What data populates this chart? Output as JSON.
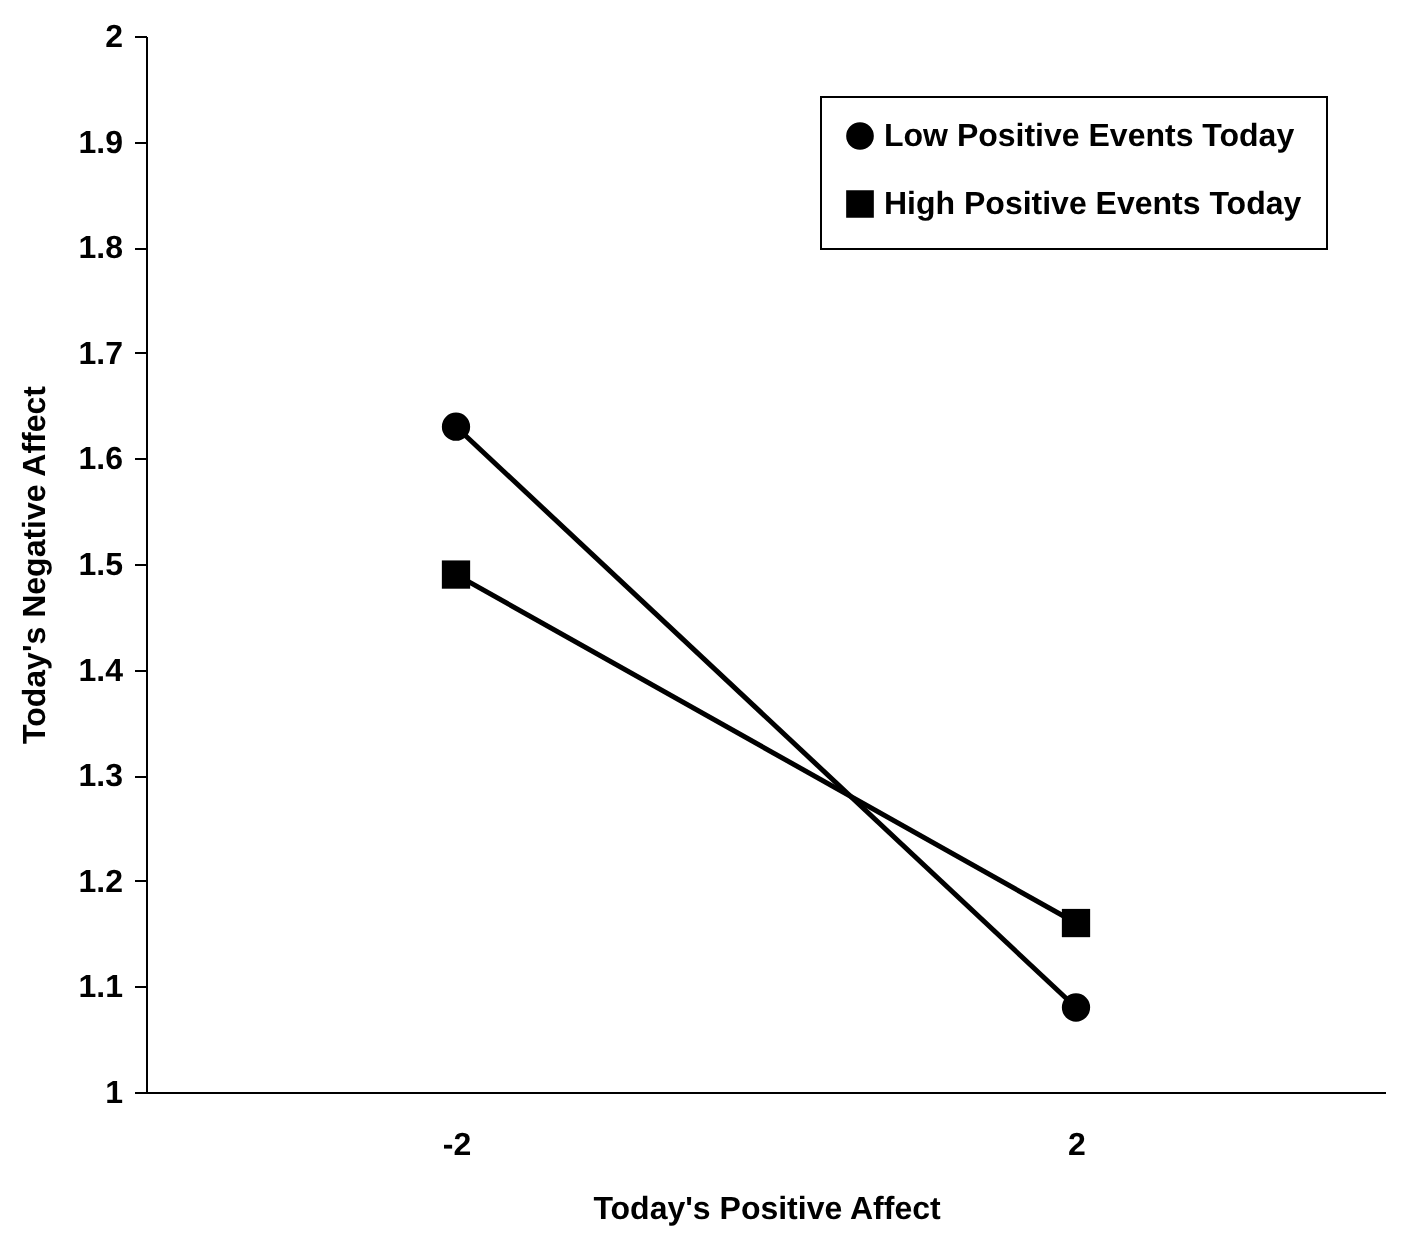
{
  "chart_data": {
    "type": "line",
    "xlabel": "Today's Positive Affect",
    "ylabel": "Today's Negative Affect",
    "categories": [
      "-2",
      "2"
    ],
    "series": [
      {
        "name": "Low Positive Events Today",
        "color": "#000000",
        "marker": "circle",
        "values": [
          1.63,
          1.08
        ]
      },
      {
        "name": "High Positive Events Today",
        "color": "#000000",
        "marker": "square",
        "values": [
          1.49,
          1.16
        ]
      }
    ],
    "ylim": [
      1,
      2
    ],
    "yticks": [
      {
        "value": 1,
        "label": "1"
      },
      1.1,
      1.2,
      1.3,
      1.4,
      1.5,
      1.6,
      1.7,
      1.8,
      1.9,
      {
        "value": 2,
        "label": "2"
      }
    ],
    "grid": false,
    "legend": "top right",
    "line_style": "solid"
  }
}
